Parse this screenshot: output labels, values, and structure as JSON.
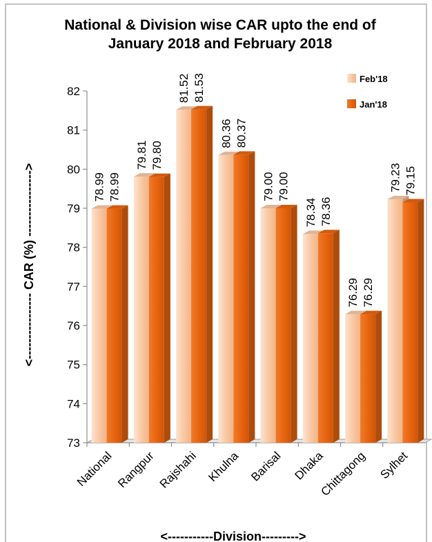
{
  "chart_data": {
    "type": "bar",
    "title": [
      "National & Division wise CAR upto the end of",
      "January 2018 and February 2018"
    ],
    "xlabel": "<-----------Division--------->",
    "ylabel": "<---------------- CAR (%) ---------------->",
    "ylim": [
      73,
      82
    ],
    "yticks": [
      "73",
      "74",
      "75",
      "76",
      "77",
      "78",
      "79",
      "80",
      "81",
      "82"
    ],
    "categories": [
      "National",
      "Rangpur",
      "Rajshahi",
      "Khulna",
      "Barisal",
      "Dhaka",
      "Chittagong",
      "Sylhet"
    ],
    "series": [
      {
        "name": "Feb'18",
        "color": "#f9c8a4",
        "values": [
          78.99,
          79.81,
          81.52,
          80.36,
          79.0,
          78.34,
          76.29,
          79.23
        ],
        "labels": [
          "78.99",
          "79.81",
          "81.52",
          "80.36",
          "79.00",
          "78.34",
          "76.29",
          "79.23"
        ]
      },
      {
        "name": "Jan'18",
        "color": "#e8650f",
        "values": [
          78.99,
          79.8,
          81.53,
          80.37,
          79.0,
          78.36,
          76.29,
          79.15
        ],
        "labels": [
          "78.99",
          "79.80",
          "81.53",
          "80.37",
          "79.00",
          "78.36",
          "76.29",
          "79.15"
        ]
      }
    ],
    "legend_position": "top-right",
    "grid": false
  }
}
